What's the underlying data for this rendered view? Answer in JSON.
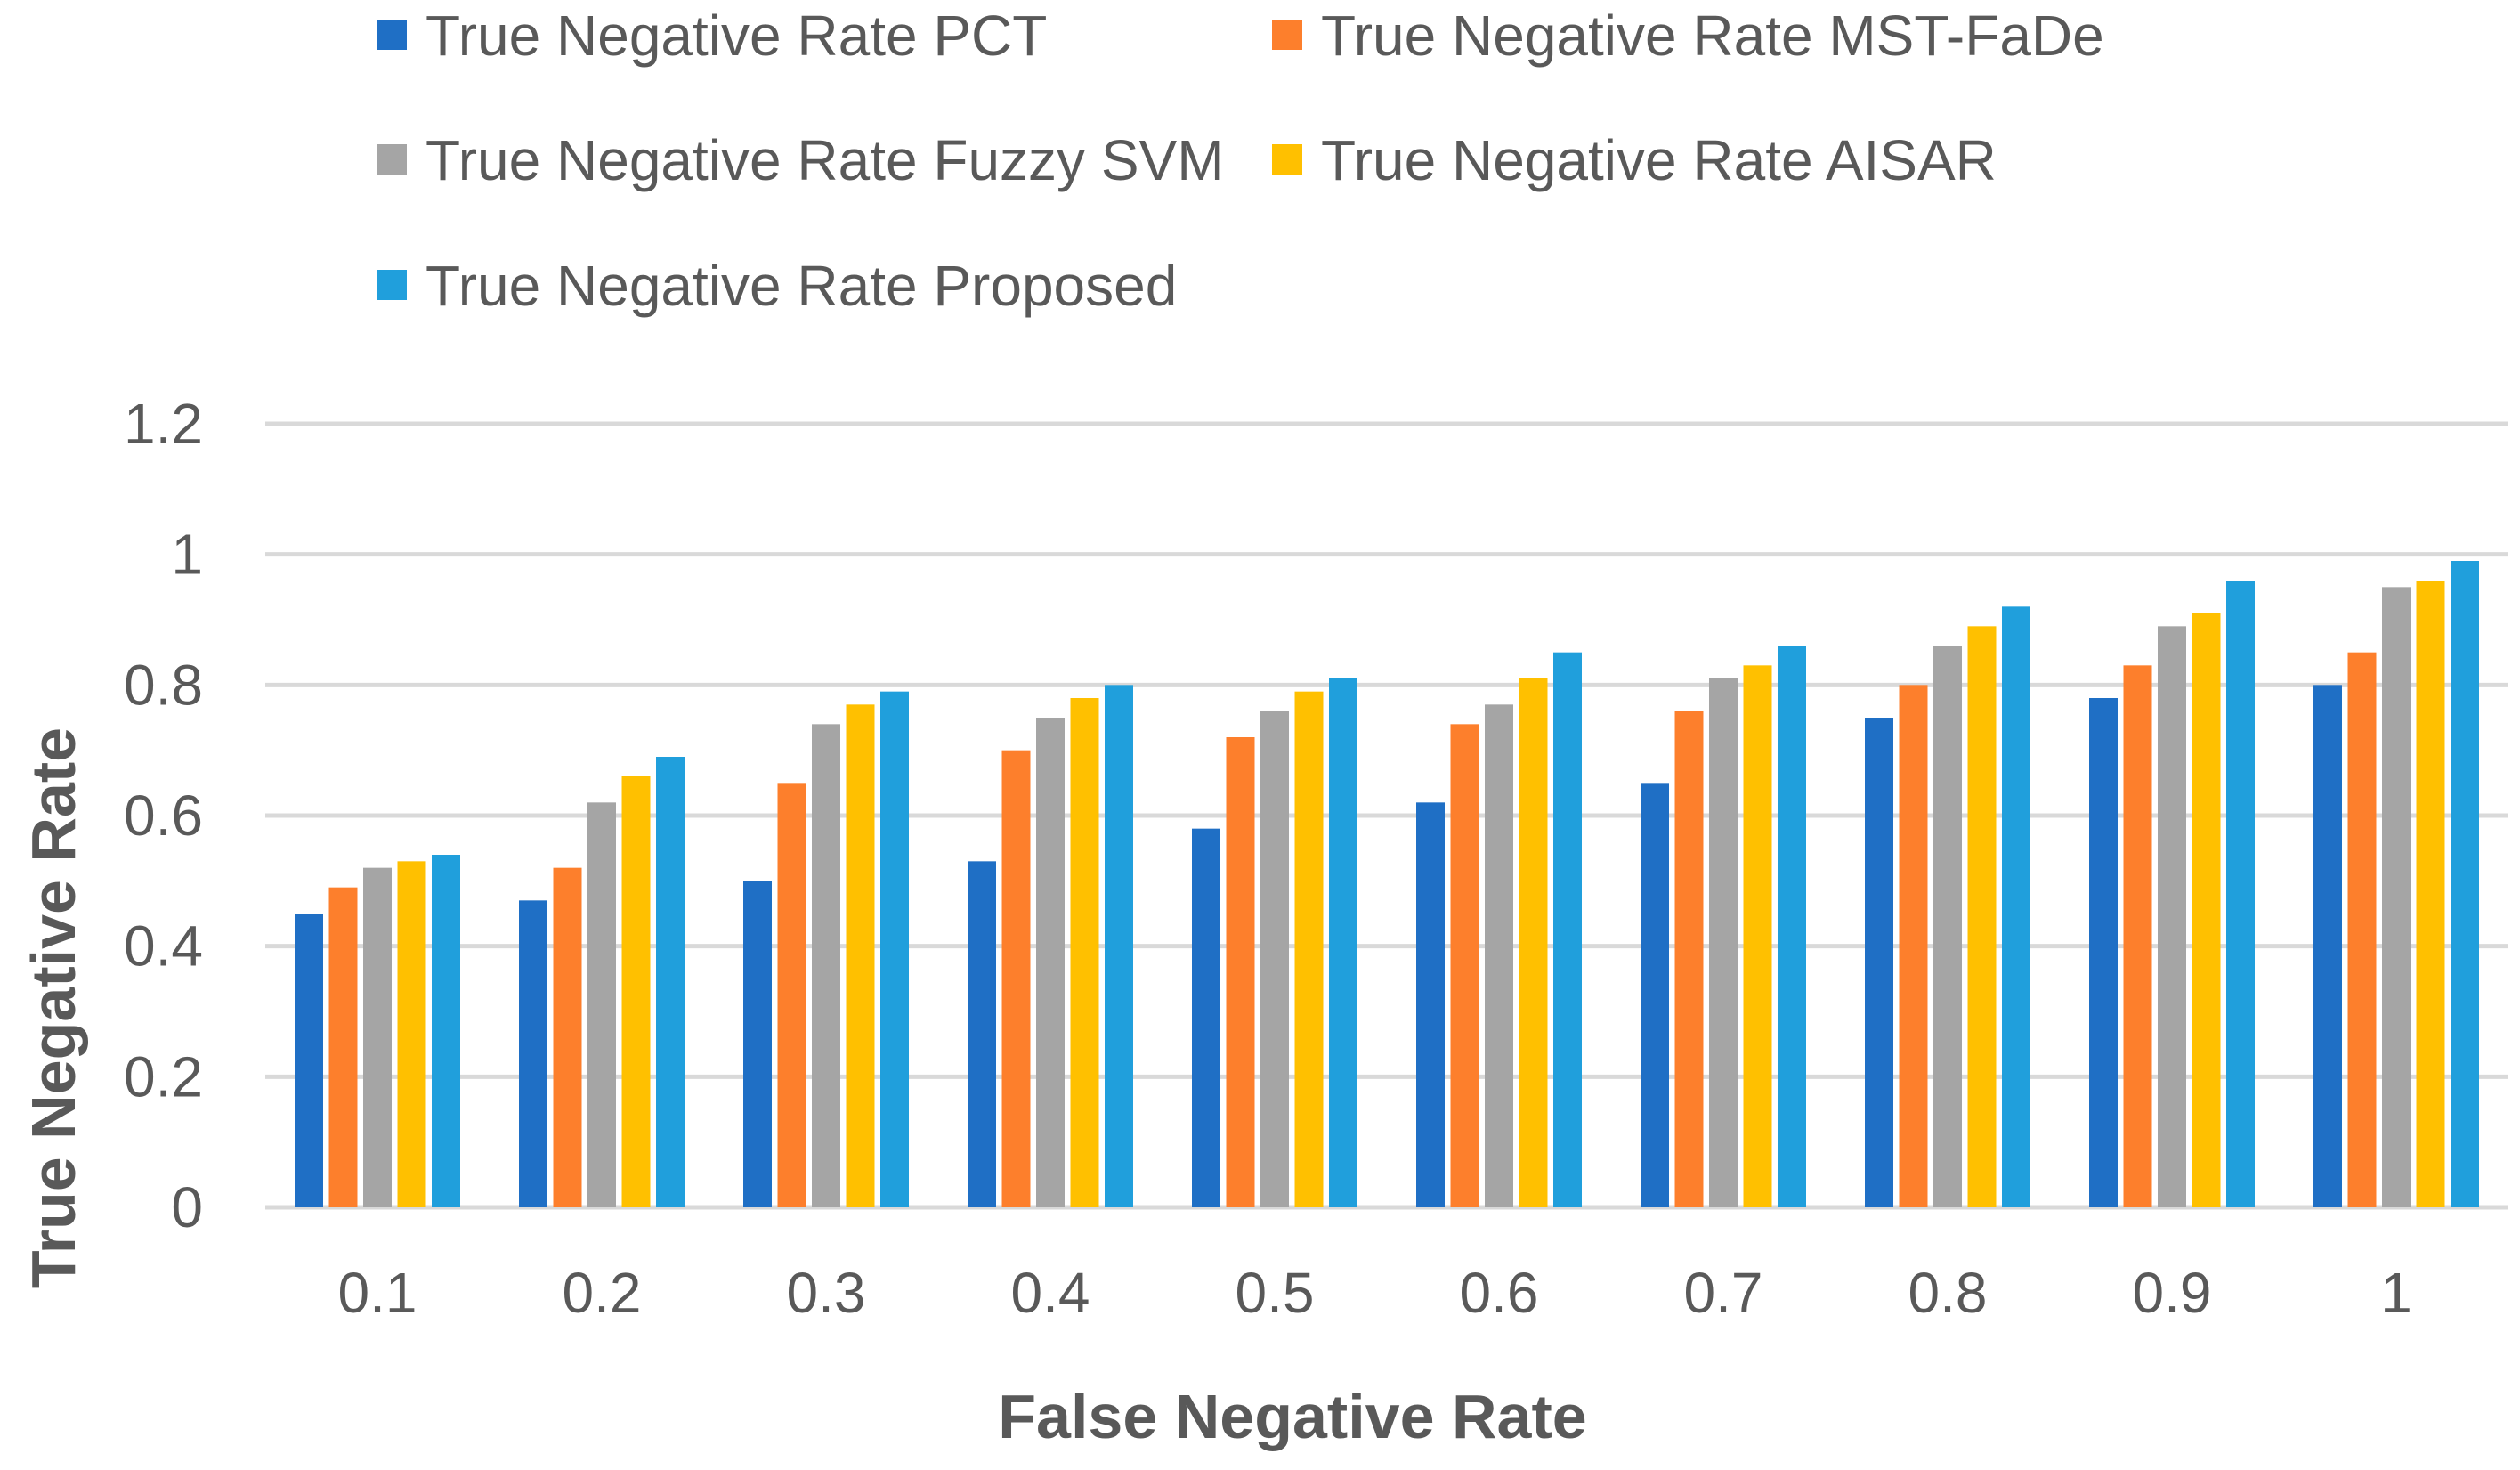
{
  "chart_data": {
    "type": "bar",
    "title": "",
    "xlabel": "False Negative Rate",
    "ylabel": "True Negative Rate",
    "categories": [
      "0.1",
      "0.2",
      "0.3",
      "0.4",
      "0.5",
      "0.6",
      "0.7",
      "0.8",
      "0.9",
      "1"
    ],
    "ylim": [
      0,
      1.2
    ],
    "yticks": [
      0,
      0.2,
      0.4,
      0.6,
      0.8,
      1,
      1.2
    ],
    "ytick_labels": [
      "0",
      "0.2",
      "0.4",
      "0.6",
      "0.8",
      "1",
      "1.2"
    ],
    "grid": true,
    "legend_position": "top",
    "series": [
      {
        "name": "True Negative Rate PCT",
        "color": "#1f6fc5",
        "values": [
          0.45,
          0.47,
          0.5,
          0.53,
          0.58,
          0.62,
          0.65,
          0.75,
          0.78,
          0.8
        ]
      },
      {
        "name": "True Negative Rate MST-FaDe",
        "color": "#fd7f2c",
        "values": [
          0.49,
          0.52,
          0.65,
          0.7,
          0.72,
          0.74,
          0.76,
          0.8,
          0.83,
          0.85
        ]
      },
      {
        "name": "True Negative Rate Fuzzy SVM",
        "color": "#a5a5a5",
        "values": [
          0.52,
          0.62,
          0.74,
          0.75,
          0.76,
          0.77,
          0.81,
          0.86,
          0.89,
          0.95
        ]
      },
      {
        "name": "True Negative Rate AISAR",
        "color": "#ffc000",
        "values": [
          0.53,
          0.66,
          0.77,
          0.78,
          0.79,
          0.81,
          0.83,
          0.89,
          0.91,
          0.96
        ]
      },
      {
        "name": "True Negative Rate Proposed",
        "color": "#209fdc",
        "values": [
          0.54,
          0.69,
          0.79,
          0.8,
          0.81,
          0.85,
          0.86,
          0.92,
          0.96,
          0.99
        ]
      }
    ]
  }
}
